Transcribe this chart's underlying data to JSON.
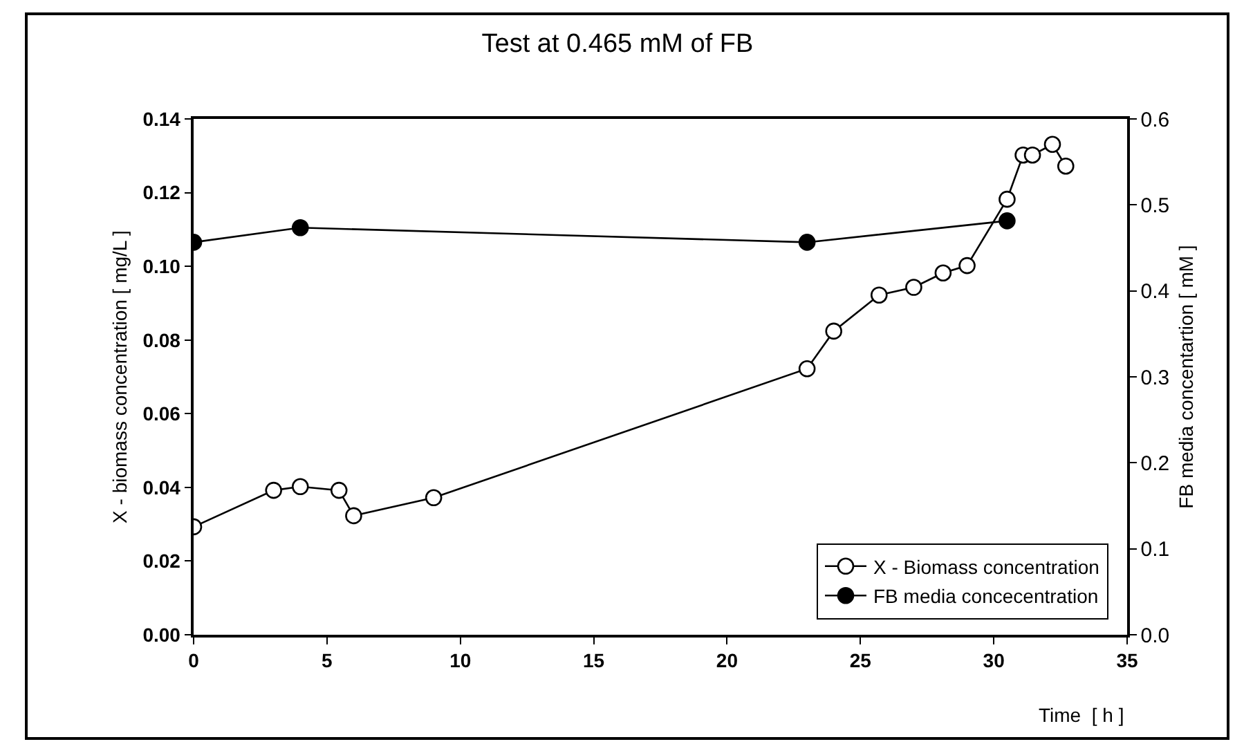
{
  "chart_data": {
    "type": "line",
    "title": "Test at 0.465 mM of FB",
    "xlabel": "Time  [ h ]",
    "ylabel": "X - biomass concentration [ mg/L ]",
    "y2label": "FB media concentartion [ mM ]",
    "xlim": [
      0,
      35
    ],
    "xticks": [
      0,
      5,
      10,
      15,
      20,
      25,
      30,
      35
    ],
    "ylim": [
      0,
      0.14
    ],
    "yticks": [
      {
        "value": 0,
        "label": "0.00"
      },
      {
        "value": 0.02,
        "label": "0.02"
      },
      {
        "value": 0.04,
        "label": "0.04"
      },
      {
        "value": 0.06,
        "label": "0.06"
      },
      {
        "value": 0.08,
        "label": "0.08"
      },
      {
        "value": 0.1,
        "label": "0.10"
      },
      {
        "value": 0.12,
        "label": "0.12"
      },
      {
        "value": 0.14,
        "label": "0.14"
      }
    ],
    "y2lim": [
      0,
      0.6
    ],
    "y2ticks": [
      {
        "value": 0,
        "label": "0.0"
      },
      {
        "value": 0.1,
        "label": "0.1"
      },
      {
        "value": 0.2,
        "label": "0.2"
      },
      {
        "value": 0.3,
        "label": "0.3"
      },
      {
        "value": 0.4,
        "label": "0.4"
      },
      {
        "value": 0.5,
        "label": "0.5"
      },
      {
        "value": 0.6,
        "label": "0.6"
      }
    ],
    "grid": false,
    "legend": "bottom right",
    "marker": "circle",
    "line_style": "solid",
    "series": [
      {
        "name": "X - Biomass concentration",
        "color": "#000000",
        "x": [
          0,
          3,
          4,
          5.45,
          6,
          9,
          23,
          24,
          25.7,
          27,
          28.1,
          29,
          30.5,
          31.1,
          31.45,
          32.2,
          32.7
        ],
        "values": [
          0.0293,
          0.0392,
          0.0402,
          0.0392,
          0.0323,
          0.0372,
          0.0722,
          0.0824,
          0.0922,
          0.0943,
          0.0982,
          0.1002,
          0.1182,
          0.1302,
          0.1302,
          0.1331,
          0.1272
        ]
      },
      {
        "name": "FB media concecentration",
        "color": "#000000",
        "axis": "y2",
        "x": [
          0,
          4,
          23,
          30.5
        ],
        "values": [
          0.4565,
          0.4735,
          0.4565,
          0.4815
        ]
      }
    ]
  }
}
